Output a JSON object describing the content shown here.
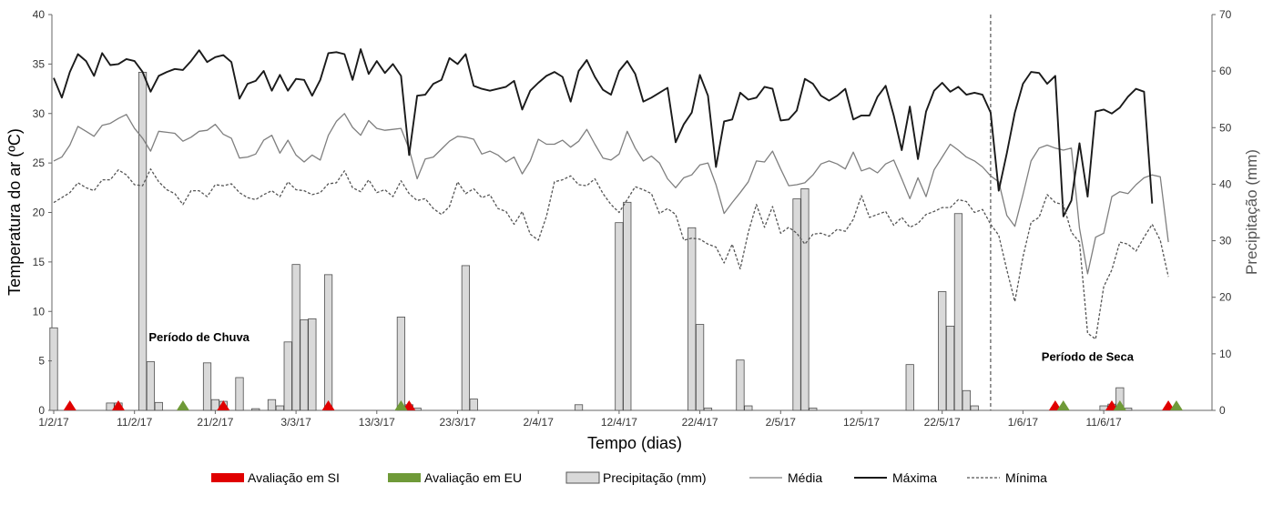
{
  "chart_data": {
    "type": "line",
    "title": "",
    "xlabel": "Tempo  (dias)",
    "ylabel_left": "Temperatura do ar (ºC)",
    "ylabel_right": "Precipitação (mm)",
    "ylim_left": [
      0,
      40
    ],
    "ylim_right": [
      0,
      70
    ],
    "x_start": "1/2/17",
    "x_ticks": [
      "1/2/17",
      "11/2/17",
      "21/2/17",
      "3/3/17",
      "13/3/17",
      "23/3/17",
      "2/4/17",
      "12/4/17",
      "22/4/17",
      "2/5/17",
      "12/5/17",
      "22/5/17",
      "1/6/17",
      "11/6/17"
    ],
    "y_ticks_left": [
      0,
      5,
      10,
      15,
      20,
      25,
      30,
      35,
      40
    ],
    "y_ticks_right": [
      0,
      10,
      20,
      30,
      40,
      50,
      60,
      70
    ],
    "legend_position": "bottom",
    "annotations": [
      {
        "text": "Período de Chuva",
        "date": "19/2/17",
        "value": 7
      },
      {
        "text": "Período de Seca",
        "date": "9/6/17",
        "value": 5
      }
    ],
    "divider_date": "28/5/17",
    "series": [
      {
        "name": "Média",
        "axis": "left",
        "style": "thin-solid",
        "color": "#7f7f7f",
        "values": [
          25.2,
          25.6,
          26.8,
          28.7,
          28.2,
          27.7,
          28.8,
          29.0,
          29.5,
          29.9,
          28.5,
          27.5,
          26.2,
          28.2,
          28.1,
          28.0,
          27.2,
          27.6,
          28.2,
          28.3,
          28.9,
          27.9,
          27.5,
          25.5,
          25.6,
          25.9,
          27.3,
          27.8,
          26.0,
          27.3,
          25.8,
          25.1,
          25.8,
          25.3,
          27.8,
          29.2,
          30.0,
          28.6,
          27.8,
          29.3,
          28.5,
          28.3,
          28.4,
          28.5,
          26.4,
          23.4,
          25.4,
          25.6,
          26.4,
          27.2,
          27.7,
          27.6,
          27.4,
          25.9,
          26.2,
          25.8,
          25.1,
          25.6,
          23.9,
          25.2,
          27.4,
          26.9,
          26.9,
          27.3,
          26.6,
          27.2,
          28.4,
          26.9,
          25.5,
          25.3,
          25.9,
          28.2,
          26.5,
          25.2,
          25.7,
          25.0,
          23.4,
          22.5,
          23.5,
          23.8,
          24.8,
          25.0,
          22.8,
          19.9,
          21.0,
          22.0,
          23.1,
          25.2,
          25.1,
          26.2,
          24.4,
          22.7,
          22.8,
          23.0,
          23.8,
          24.9,
          25.2,
          24.9,
          24.4,
          26.1,
          24.2,
          24.5,
          24.0,
          24.9,
          25.3,
          23.4,
          21.4,
          23.5,
          21.6,
          24.3,
          25.6,
          26.9,
          26.3,
          25.6,
          25.2,
          24.6,
          23.7,
          23.1,
          19.7,
          18.6,
          21.8,
          25.2,
          26.5,
          26.8,
          26.5,
          26.3,
          26.5,
          18.4,
          13.8,
          17.5,
          17.9,
          21.6,
          22.1,
          21.9,
          22.8,
          23.5,
          23.8,
          23.6,
          17.0
        ]
      },
      {
        "name": "Máxima",
        "axis": "left",
        "style": "solid",
        "color": "#1a1a1a",
        "values": [
          33.6,
          31.6,
          34.2,
          36.0,
          35.3,
          33.8,
          36.1,
          34.9,
          35.0,
          35.5,
          35.3,
          34.2,
          32.2,
          33.8,
          34.2,
          34.5,
          34.4,
          35.3,
          36.4,
          35.2,
          35.7,
          35.9,
          35.2,
          31.5,
          33.0,
          33.3,
          34.3,
          32.3,
          33.9,
          32.3,
          33.5,
          33.4,
          31.8,
          33.4,
          36.1,
          36.2,
          36.0,
          33.4,
          36.5,
          34.0,
          35.3,
          34.1,
          35.0,
          33.8,
          25.8,
          31.8,
          31.9,
          33.0,
          33.4,
          35.6,
          35.0,
          36.0,
          32.8,
          32.5,
          32.3,
          32.5,
          32.7,
          33.3,
          30.4,
          32.3,
          33.1,
          33.8,
          34.2,
          33.7,
          31.2,
          34.3,
          35.4,
          33.7,
          32.4,
          31.9,
          34.3,
          35.3,
          34.0,
          31.2,
          31.6,
          32.1,
          32.6,
          27.1,
          28.9,
          30.1,
          33.9,
          31.8,
          24.6,
          29.2,
          29.4,
          32.1,
          31.4,
          31.6,
          32.7,
          32.5,
          29.3,
          29.4,
          30.3,
          33.5,
          33.0,
          31.8,
          31.3,
          31.8,
          32.5,
          29.4,
          29.8,
          29.8,
          31.7,
          32.8,
          29.8,
          26.3,
          30.7,
          25.4,
          30.2,
          32.3,
          33.1,
          32.2,
          32.7,
          31.9,
          32.1,
          31.9,
          30.1,
          22.2,
          26.0,
          30.1,
          33.0,
          34.2,
          34.1,
          33.0,
          33.8,
          19.6,
          21.2,
          27.0,
          21.6,
          30.2,
          30.4,
          30.0,
          30.6,
          31.7,
          32.5,
          32.2,
          20.9
        ]
      },
      {
        "name": "Mínima",
        "axis": "left",
        "style": "dashed",
        "color": "#555555",
        "values": [
          21.0,
          21.5,
          22.0,
          23.0,
          22.5,
          22.2,
          23.3,
          23.3,
          24.3,
          23.8,
          22.8,
          22.7,
          24.4,
          23.1,
          22.3,
          21.9,
          20.8,
          22.2,
          22.2,
          21.6,
          22.8,
          22.7,
          22.9,
          22.0,
          21.5,
          21.3,
          21.8,
          22.2,
          21.6,
          23.1,
          22.3,
          22.2,
          21.8,
          22.0,
          22.9,
          23.0,
          24.2,
          22.5,
          22.1,
          23.3,
          22.0,
          22.3,
          21.6,
          23.2,
          21.9,
          21.2,
          21.4,
          20.4,
          19.8,
          20.6,
          23.1,
          21.9,
          22.4,
          21.5,
          21.8,
          20.4,
          20.1,
          18.8,
          20.1,
          17.8,
          17.2,
          19.6,
          23.1,
          23.3,
          23.7,
          22.8,
          22.7,
          23.4,
          21.9,
          20.8,
          20.0,
          21.3,
          22.6,
          22.3,
          21.9,
          19.9,
          20.4,
          19.8,
          17.2,
          17.4,
          17.3,
          16.8,
          16.5,
          14.9,
          16.8,
          14.3,
          18.0,
          20.8,
          18.5,
          20.6,
          17.9,
          18.5,
          17.9,
          16.8,
          17.8,
          17.9,
          17.6,
          18.3,
          18.1,
          19.3,
          21.7,
          19.5,
          19.8,
          20.1,
          18.7,
          19.5,
          18.5,
          18.9,
          19.8,
          20.1,
          20.5,
          20.5,
          21.3,
          21.1,
          20.0,
          20.3,
          18.8,
          17.7,
          14.2,
          11.0,
          15.5,
          19.0,
          19.5,
          21.8,
          21.0,
          20.8,
          18.0,
          17.0,
          7.8,
          7.2,
          12.5,
          14.2,
          17.0,
          16.8,
          16.1,
          17.5,
          18.8,
          17.2,
          13.5
        ]
      },
      {
        "name": "Precipitação (mm)",
        "axis": "right",
        "style": "bar",
        "color": "#d9d9d9",
        "values": [
          14.6,
          0,
          0,
          0,
          0,
          0,
          0,
          1.3,
          1.3,
          0,
          0,
          59.8,
          8.6,
          1.4,
          0,
          0,
          0,
          0,
          0,
          8.4,
          1.9,
          1.6,
          0,
          5.8,
          0,
          0.3,
          0,
          1.9,
          0.8,
          12.1,
          25.8,
          16,
          16.2,
          0,
          24,
          0,
          0,
          0,
          0,
          0,
          0,
          0,
          0,
          16.5,
          1,
          0.4,
          0,
          0,
          0,
          0,
          0,
          25.6,
          2,
          0,
          0,
          0,
          0,
          0,
          0,
          0,
          0,
          0,
          0,
          0,
          0,
          1,
          0,
          0,
          0,
          0,
          33.2,
          36.8,
          0,
          0,
          0,
          0,
          0,
          0,
          0,
          32.3,
          15.2,
          0.4,
          0,
          0,
          0,
          8.9,
          0.8,
          0,
          0,
          0,
          0,
          0,
          37.4,
          39.2,
          0.4,
          0,
          0,
          0,
          0,
          0,
          0,
          0,
          0,
          0,
          0,
          0,
          8.1,
          0,
          0,
          0,
          21,
          14.9,
          34.8,
          3.5,
          0.8,
          0,
          0,
          0,
          0,
          0,
          0,
          0,
          0,
          0,
          0,
          0,
          0,
          0,
          0,
          0,
          0.8,
          1.1,
          4,
          0.4,
          0,
          0,
          0,
          0,
          0,
          0,
          0,
          0,
          0
        ]
      }
    ],
    "markers": [
      {
        "name": "Avaliação em SI",
        "color": "#e00000",
        "dates": [
          "3/2/17",
          "9/2/17",
          "22/2/17",
          "7/3/17",
          "17/3/17",
          "5/6/17",
          "12/6/17",
          "19/6/17"
        ]
      },
      {
        "name": "Avaliação em EU",
        "color": "#6f9a38",
        "dates": [
          "17/2/17",
          "16/3/17",
          "6/6/17",
          "13/6/17",
          "20/6/17"
        ]
      }
    ],
    "legend": [
      "Avaliação em SI",
      "Avaliação em EU",
      "Precipitação (mm)",
      "Média",
      "Máxima",
      "Mínima"
    ]
  }
}
